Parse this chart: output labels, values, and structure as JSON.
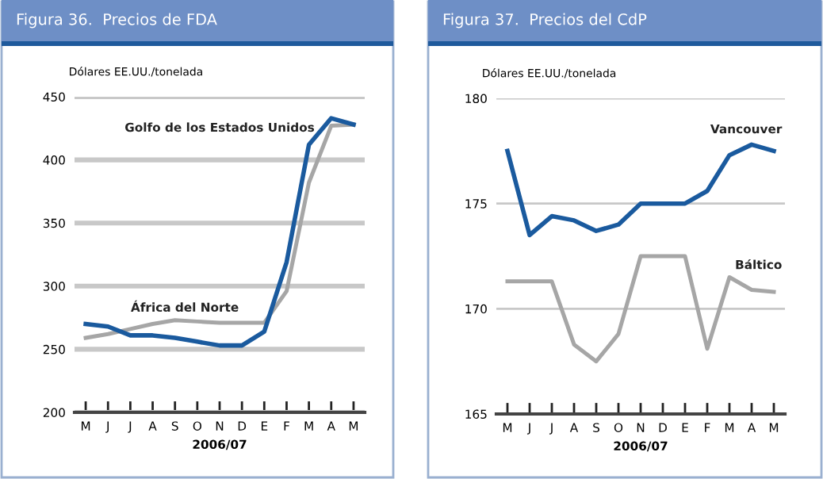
{
  "chart_data": [
    {
      "type": "line",
      "title": "Figura 36.  Precios de FDA",
      "ylabel": "Dólares EE.UU./tonelada",
      "xlabel": "2006/07",
      "categories": [
        "M",
        "J",
        "J",
        "A",
        "S",
        "O",
        "N",
        "D",
        "E",
        "F",
        "M",
        "A",
        "M"
      ],
      "series": [
        {
          "name": "Golfo de los Estados Unidos",
          "color": "#1a5a9e",
          "values": [
            270,
            268,
            261,
            261,
            259,
            256,
            253,
            253,
            264,
            319,
            412,
            433,
            428
          ]
        },
        {
          "name": "África del Norte",
          "color": "#a6a6a6",
          "values": [
            259,
            262,
            266,
            270,
            273,
            272,
            271,
            271,
            271,
            296,
            382,
            427,
            428
          ]
        }
      ],
      "ylim": [
        200,
        450
      ],
      "yticks": [
        200,
        250,
        300,
        350,
        400,
        450
      ],
      "grid": "y",
      "legend": false
    },
    {
      "type": "line",
      "title": "Figura 37.  Precios del CdP",
      "ylabel": "Dólares EE.UU./tonelada",
      "xlabel": "2006/07",
      "categories": [
        "M",
        "J",
        "J",
        "A",
        "S",
        "O",
        "N",
        "D",
        "E",
        "F",
        "M",
        "A",
        "M"
      ],
      "series": [
        {
          "name": "Vancouver",
          "color": "#1a5a9e",
          "values": [
            177.5,
            173.5,
            174.4,
            174.2,
            173.7,
            174.0,
            175.0,
            175.0,
            175.0,
            175.6,
            177.3,
            177.8,
            177.5
          ]
        },
        {
          "name": "Báltico",
          "color": "#a6a6a6",
          "values": [
            171.3,
            171.3,
            171.3,
            168.3,
            167.5,
            168.8,
            172.5,
            172.5,
            172.5,
            168.1,
            171.5,
            170.9,
            170.8
          ]
        }
      ],
      "ylim": [
        165,
        180
      ],
      "yticks": [
        165,
        170,
        175,
        180
      ],
      "grid": "y",
      "legend": false
    }
  ]
}
